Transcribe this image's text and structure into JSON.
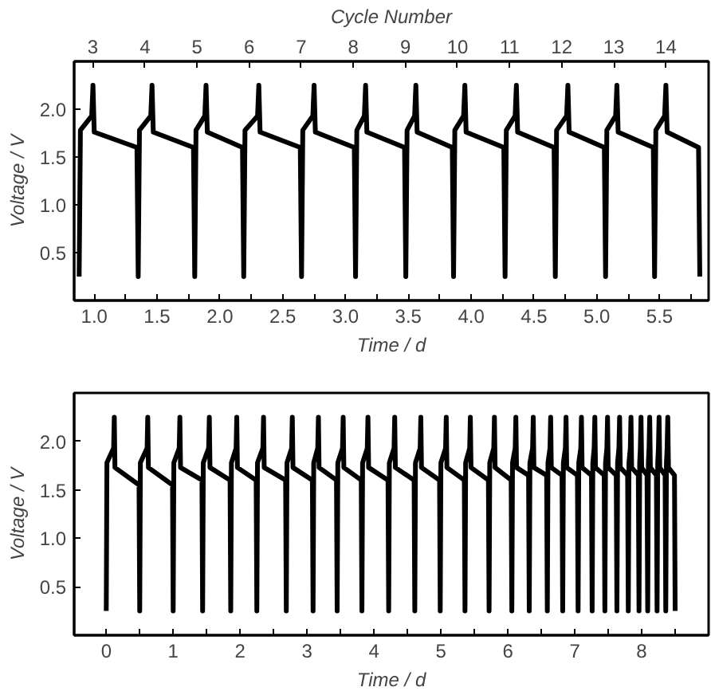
{
  "chart_data": [
    {
      "type": "line",
      "xlabel": "Time / d",
      "ylabel": "Voltage / V",
      "x2label": "Cycle Number",
      "grid": false,
      "marker": "none",
      "line_style": "solid",
      "xlim": [
        0.84,
        5.89
      ],
      "ylim": [
        0,
        2.5
      ],
      "x2lim": [
        2.64,
        14.82
      ],
      "xticks": [
        {
          "value": 1,
          "label": "1.0"
        },
        {
          "value": 1.25,
          "label": null
        },
        {
          "value": 1.5,
          "label": "1.5"
        },
        {
          "value": 1.75,
          "label": null
        },
        {
          "value": 2,
          "label": "2.0"
        },
        {
          "value": 2.25,
          "label": null
        },
        {
          "value": 2.5,
          "label": "2.5"
        },
        {
          "value": 2.75,
          "label": null
        },
        {
          "value": 3,
          "label": "3.0"
        },
        {
          "value": 3.25,
          "label": null
        },
        {
          "value": 3.5,
          "label": "3.5"
        },
        {
          "value": 3.75,
          "label": null
        },
        {
          "value": 4,
          "label": "4.0"
        },
        {
          "value": 4.25,
          "label": null
        },
        {
          "value": 4.5,
          "label": "4.5"
        },
        {
          "value": 4.75,
          "label": null
        },
        {
          "value": 5,
          "label": "5.0"
        },
        {
          "value": 5.25,
          "label": null
        },
        {
          "value": 5.5,
          "label": "5.5"
        },
        {
          "value": 5.75,
          "label": null
        }
      ],
      "yticks": [
        {
          "value": 0.5,
          "label": "0.5"
        },
        {
          "value": 1,
          "label": "1.0"
        },
        {
          "value": 1.5,
          "label": "1.5"
        },
        {
          "value": 2,
          "label": "2.0"
        }
      ],
      "x2ticks": [
        3,
        4,
        5,
        6,
        7,
        8,
        9,
        10,
        11,
        12,
        13,
        14
      ],
      "series": [
        {
          "color": "#000000",
          "x": [
            0.88,
            0.89,
            0.98,
            0.99,
            1.0,
            1.34,
            1.35,
            1.36,
            1.45,
            1.46,
            1.47,
            1.79,
            1.8,
            1.81,
            1.88,
            1.89,
            1.9,
            2.18,
            2.19,
            2.2,
            2.3,
            2.31,
            2.32,
            2.64,
            2.65,
            2.66,
            2.74,
            2.75,
            2.76,
            3.07,
            3.08,
            3.09,
            3.15,
            3.16,
            3.17,
            3.47,
            3.48,
            3.49,
            3.55,
            3.56,
            3.57,
            3.85,
            3.86,
            3.87,
            3.94,
            3.95,
            3.96,
            4.26,
            4.27,
            4.28,
            4.35,
            4.36,
            4.37,
            4.66,
            4.67,
            4.68,
            4.76,
            4.77,
            4.78,
            5.06,
            5.07,
            5.08,
            5.15,
            5.16,
            5.17,
            5.45,
            5.46,
            5.47,
            5.54,
            5.55,
            5.56,
            5.81,
            5.82
          ],
          "values": [
            0.25,
            1.78,
            1.93,
            2.25,
            1.76,
            1.6,
            0.25,
            1.78,
            1.93,
            2.25,
            1.76,
            1.6,
            0.25,
            1.78,
            1.93,
            2.25,
            1.76,
            1.6,
            0.25,
            1.78,
            1.93,
            2.25,
            1.76,
            1.6,
            0.25,
            1.78,
            1.93,
            2.25,
            1.76,
            1.6,
            0.25,
            1.78,
            1.93,
            2.25,
            1.76,
            1.6,
            0.25,
            1.78,
            1.93,
            2.25,
            1.76,
            1.6,
            0.25,
            1.78,
            1.93,
            2.25,
            1.76,
            1.6,
            0.25,
            1.78,
            1.93,
            2.25,
            1.76,
            1.6,
            0.25,
            1.78,
            1.93,
            2.25,
            1.76,
            1.6,
            0.25,
            1.78,
            1.93,
            2.25,
            1.76,
            1.6,
            0.25,
            1.78,
            1.93,
            2.25,
            1.76,
            1.6,
            0.25
          ]
        }
      ]
    },
    {
      "type": "line",
      "xlabel": "Time / d",
      "ylabel": "Voltage / V",
      "grid": false,
      "marker": "none",
      "line_style": "solid",
      "xlim": [
        -0.48,
        9.0
      ],
      "ylim": [
        0,
        2.5
      ],
      "xticks": [
        0,
        {
          "value": 0.5,
          "label": null
        },
        1,
        {
          "value": 1.5,
          "label": null
        },
        2,
        {
          "value": 2.5,
          "label": null
        },
        3,
        {
          "value": 3.5,
          "label": null
        },
        4,
        {
          "value": 4.5,
          "label": null
        },
        5,
        {
          "value": 5.5,
          "label": null
        },
        6,
        {
          "value": 6.5,
          "label": null
        },
        7,
        {
          "value": 7.5,
          "label": null
        },
        8,
        {
          "value": 8.5,
          "label": null
        }
      ],
      "yticks": [
        {
          "value": 0.5,
          "label": "0.5"
        },
        {
          "value": 1,
          "label": "1.0"
        },
        {
          "value": 1.5,
          "label": "1.5"
        },
        {
          "value": 2,
          "label": "2.0"
        }
      ],
      "series": [
        {
          "color": "#000000",
          "x": [
            0,
            0.01,
            0.11,
            0.12,
            0.13,
            0.49,
            0.5,
            0.51,
            0.61,
            0.62,
            0.63,
            0.99,
            1.0,
            1.01,
            1.09,
            1.1,
            1.11,
            1.43,
            1.44,
            1.45,
            1.53,
            1.54,
            1.55,
            1.85,
            1.86,
            1.87,
            1.94,
            1.95,
            1.96,
            2.24,
            2.25,
            2.26,
            2.34,
            2.35,
            2.36,
            2.68,
            2.69,
            2.7,
            2.77,
            2.78,
            2.79,
            3.08,
            3.09,
            3.1,
            3.16,
            3.17,
            3.18,
            3.44,
            3.45,
            3.46,
            3.53,
            3.54,
            3.55,
            3.81,
            3.82,
            3.83,
            3.9,
            3.91,
            3.92,
            4.21,
            4.22,
            4.23,
            4.3,
            4.31,
            4.32,
            4.6,
            4.61,
            4.62,
            4.69,
            4.7,
            4.71,
            4.98,
            4.99,
            5.0,
            5.07,
            5.08,
            5.09,
            5.35,
            5.36,
            5.37,
            5.43,
            5.44,
            5.45,
            5.71,
            5.72,
            5.73,
            5.79,
            5.8,
            5.81,
            6.05,
            6.06,
            6.07,
            6.11,
            6.12,
            6.13,
            6.31,
            6.32,
            6.33,
            6.37,
            6.38,
            6.39,
            6.58,
            6.59,
            6.6,
            6.63,
            6.64,
            6.65,
            6.81,
            6.82,
            6.83,
            6.86,
            6.87,
            6.88,
            7.04,
            7.05,
            7.06,
            7.09,
            7.1,
            7.11,
            7.25,
            7.26,
            7.27,
            7.29,
            7.3,
            7.31,
            7.44,
            7.45,
            7.46,
            7.48,
            7.49,
            7.5,
            7.62,
            7.63,
            7.64,
            7.66,
            7.67,
            7.68,
            7.79,
            7.8,
            7.81,
            7.83,
            7.84,
            7.85,
            7.95,
            7.96,
            7.97,
            7.98,
            7.99,
            8.0,
            8.08,
            8.09,
            8.1,
            8.11,
            8.12,
            8.13,
            8.22,
            8.23,
            8.24,
            8.25,
            8.26,
            8.27,
            8.35,
            8.36,
            8.37,
            8.38,
            8.39,
            8.4,
            8.49,
            8.5
          ],
          "values": [
            0.25,
            1.78,
            1.93,
            2.25,
            1.73,
            1.55,
            0.25,
            1.78,
            1.93,
            2.25,
            1.73,
            1.55,
            0.25,
            1.78,
            1.93,
            2.25,
            1.73,
            1.6,
            0.25,
            1.78,
            1.93,
            2.25,
            1.73,
            1.6,
            0.25,
            1.78,
            1.93,
            2.25,
            1.73,
            1.6,
            0.25,
            1.78,
            1.93,
            2.25,
            1.73,
            1.6,
            0.25,
            1.78,
            1.93,
            2.25,
            1.73,
            1.6,
            0.25,
            1.78,
            1.93,
            2.25,
            1.73,
            1.6,
            0.25,
            1.78,
            1.93,
            2.25,
            1.73,
            1.6,
            0.25,
            1.78,
            1.93,
            2.25,
            1.73,
            1.6,
            0.25,
            1.78,
            1.93,
            2.25,
            1.73,
            1.6,
            0.25,
            1.78,
            1.93,
            2.25,
            1.73,
            1.6,
            0.25,
            1.78,
            1.93,
            2.25,
            1.73,
            1.6,
            0.25,
            1.78,
            1.93,
            2.25,
            1.73,
            1.6,
            0.25,
            1.78,
            1.93,
            2.25,
            1.73,
            1.6,
            0.25,
            1.78,
            1.93,
            2.25,
            1.73,
            1.65,
            0.25,
            1.78,
            1.93,
            2.25,
            1.73,
            1.65,
            0.25,
            1.78,
            1.93,
            2.25,
            1.73,
            1.65,
            0.25,
            1.78,
            1.93,
            2.25,
            1.73,
            1.65,
            0.25,
            1.78,
            1.93,
            2.25,
            1.73,
            1.65,
            0.25,
            1.78,
            1.93,
            2.25,
            1.73,
            1.65,
            0.25,
            1.78,
            1.93,
            2.25,
            1.73,
            1.65,
            0.25,
            1.78,
            1.93,
            2.25,
            1.73,
            1.65,
            0.25,
            1.78,
            1.93,
            2.25,
            1.73,
            1.65,
            0.25,
            1.78,
            1.93,
            2.25,
            1.73,
            1.65,
            0.25,
            1.78,
            1.93,
            2.25,
            1.73,
            1.65,
            0.25,
            1.78,
            1.93,
            2.25,
            1.73,
            1.65,
            0.25,
            1.78,
            1.93,
            2.25,
            1.73,
            1.65,
            0.25
          ]
        }
      ]
    }
  ]
}
